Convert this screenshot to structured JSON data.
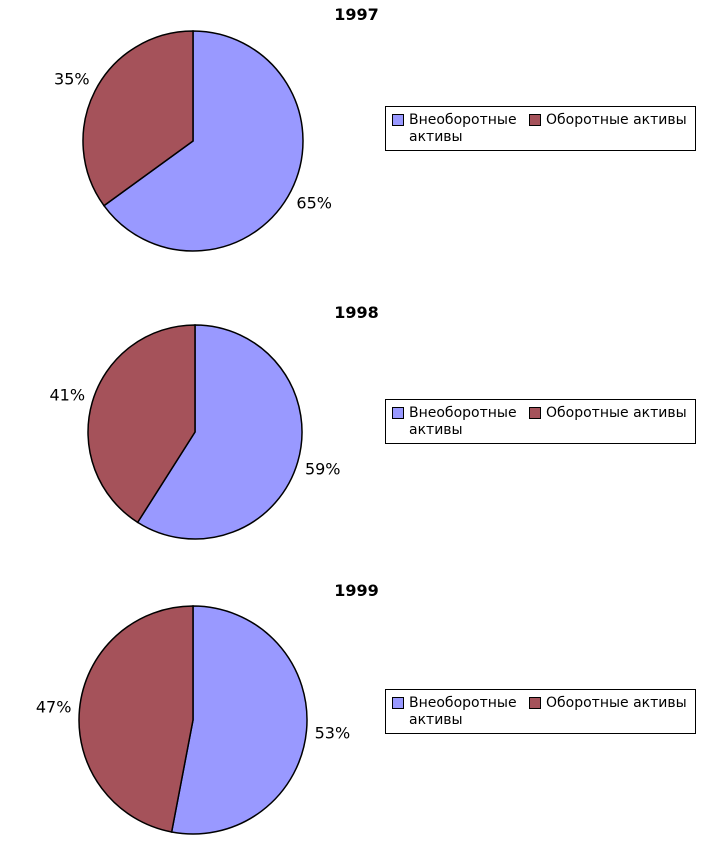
{
  "background_color": "#ffffff",
  "chart_data": [
    {
      "type": "pie",
      "title": "1997",
      "categories": [
        "Внеоборотные активы",
        "Оборотные активы"
      ],
      "values": [
        65,
        35
      ],
      "data_labels": [
        "65%",
        "35%"
      ],
      "colors": [
        "#9999FF",
        "#A5525A"
      ],
      "legend_position": "right",
      "start_angle_deg": 0,
      "direction": "clockwise"
    },
    {
      "type": "pie",
      "title": "1998",
      "categories": [
        "Внеоборотные активы",
        "Оборотные активы"
      ],
      "values": [
        59,
        41
      ],
      "data_labels": [
        "59%",
        "41%"
      ],
      "colors": [
        "#9999FF",
        "#A5525A"
      ],
      "legend_position": "right",
      "start_angle_deg": 0,
      "direction": "clockwise"
    },
    {
      "type": "pie",
      "title": "1999",
      "categories": [
        "Внеоборотные активы",
        "Оборотные активы"
      ],
      "values": [
        53,
        47
      ],
      "data_labels": [
        "53%",
        "47%"
      ],
      "colors": [
        "#9999FF",
        "#A5525A"
      ],
      "legend_position": "right",
      "start_angle_deg": 0,
      "direction": "clockwise"
    }
  ]
}
